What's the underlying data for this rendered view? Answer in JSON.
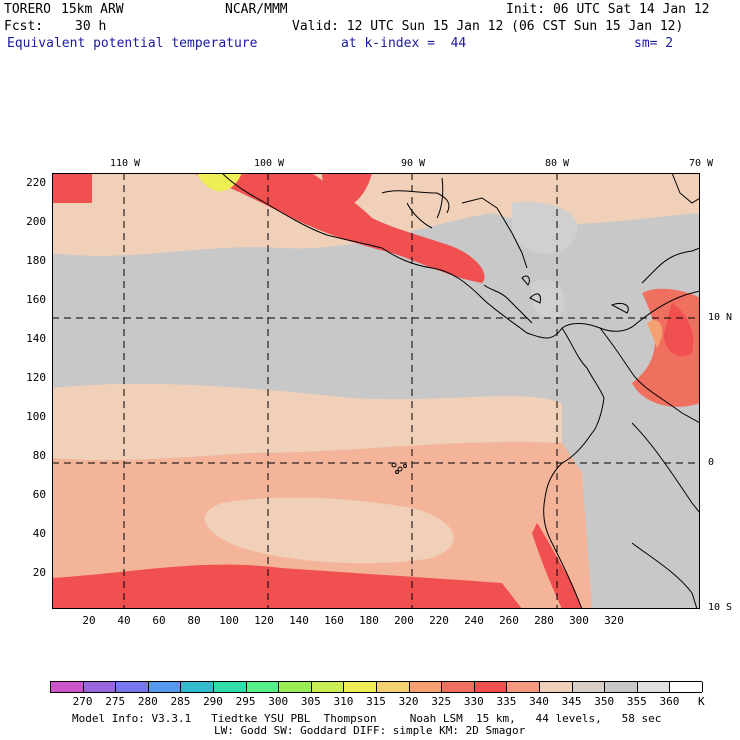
{
  "header": {
    "model": "TORERO",
    "resolution": "15km ARW",
    "center": "NCAR/MMM",
    "init": "Init: 06 UTC Sat 14 Jan 12",
    "fcst_label": "Fcst:",
    "fcst_value": "30 h",
    "valid": "Valid: 12 UTC Sun 15 Jan 12 (06 CST Sun 15 Jan 12)",
    "field": "Equivalent potential temperature",
    "level": "at k-index =  44",
    "smoothing": "sm= 2"
  },
  "map": {
    "y_ticks": [
      "20",
      "40",
      "60",
      "80",
      "100",
      "120",
      "140",
      "160",
      "180",
      "200",
      "220"
    ],
    "x_ticks": [
      "20",
      "40",
      "60",
      "80",
      "100",
      "120",
      "140",
      "160",
      "180",
      "200",
      "220",
      "240",
      "260",
      "280",
      "300",
      "320"
    ],
    "lon_labels": [
      "110 W",
      "100 W",
      "90 W",
      "80 W",
      "70 W"
    ],
    "lat_labels": [
      "10 N",
      "0",
      "10 S"
    ]
  },
  "colorbar": {
    "unit": "K",
    "levels": [
      "270",
      "275",
      "280",
      "285",
      "290",
      "295",
      "300",
      "305",
      "310",
      "315",
      "320",
      "325",
      "330",
      "335",
      "340",
      "345",
      "350",
      "355",
      "360"
    ],
    "colors": [
      "#cc55cc",
      "#9966dd",
      "#7777ee",
      "#5599ee",
      "#33bbcc",
      "#33ddaa",
      "#55ee88",
      "#99ee55",
      "#ccee55",
      "#eeee55",
      "#f4d070",
      "#f4a070",
      "#f07060",
      "#f05050",
      "#f49a80",
      "#f0d0b8",
      "#d8d0c8",
      "#c8c8c8",
      "#e0e0e0",
      "#ffffff"
    ]
  },
  "footer": {
    "line1": "Model Info: V3.3.1   Tiedtke YSU PBL  Thompson     Noah LSM  15 km,   44 levels,   58 sec",
    "line2": "LW: Godd SW: Goddard DIFF: simple KM: 2D Smagor"
  }
}
